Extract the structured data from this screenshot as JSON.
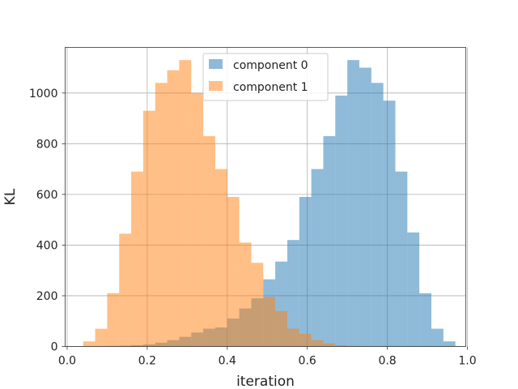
{
  "chart_data": {
    "type": "bar",
    "subtype": "overlapping-histogram",
    "title": "",
    "xlabel": "iteration",
    "ylabel": "KL",
    "xlim": [
      -0.005,
      0.996
    ],
    "ylim": [
      0,
      1180
    ],
    "xticks": [
      "0.0",
      "0.2",
      "0.4",
      "0.6",
      "0.8",
      "1.0"
    ],
    "yticks": [
      "0",
      "200",
      "400",
      "600",
      "800",
      "1000"
    ],
    "grid": true,
    "legend_position": "top-center",
    "bin_width": 0.03,
    "series": [
      {
        "name": "component 0",
        "color": "#1f77b4",
        "opacity": 0.5,
        "bin_starts": [
          0.07,
          0.1,
          0.13,
          0.16,
          0.19,
          0.22,
          0.25,
          0.28,
          0.31,
          0.34,
          0.37,
          0.4,
          0.43,
          0.46,
          0.49,
          0.52,
          0.55,
          0.58,
          0.61,
          0.64,
          0.67,
          0.7,
          0.73,
          0.76,
          0.79,
          0.82,
          0.85,
          0.88,
          0.91,
          0.94
        ],
        "counts": [
          1,
          2,
          3,
          5,
          8,
          15,
          25,
          38,
          55,
          70,
          75,
          110,
          150,
          190,
          265,
          335,
          420,
          590,
          700,
          830,
          990,
          1130,
          1100,
          1040,
          970,
          690,
          450,
          210,
          70,
          20
        ]
      },
      {
        "name": "component 1",
        "color": "#ff7f0e",
        "opacity": 0.5,
        "bin_starts": [
          0.04,
          0.07,
          0.1,
          0.13,
          0.16,
          0.19,
          0.22,
          0.25,
          0.28,
          0.31,
          0.34,
          0.37,
          0.4,
          0.43,
          0.46,
          0.49,
          0.52,
          0.55,
          0.58,
          0.61,
          0.64,
          0.67,
          0.7
        ],
        "counts": [
          20,
          70,
          210,
          445,
          690,
          930,
          1040,
          1090,
          1130,
          1000,
          830,
          700,
          590,
          410,
          330,
          195,
          140,
          70,
          50,
          25,
          12,
          5,
          2
        ]
      }
    ]
  }
}
